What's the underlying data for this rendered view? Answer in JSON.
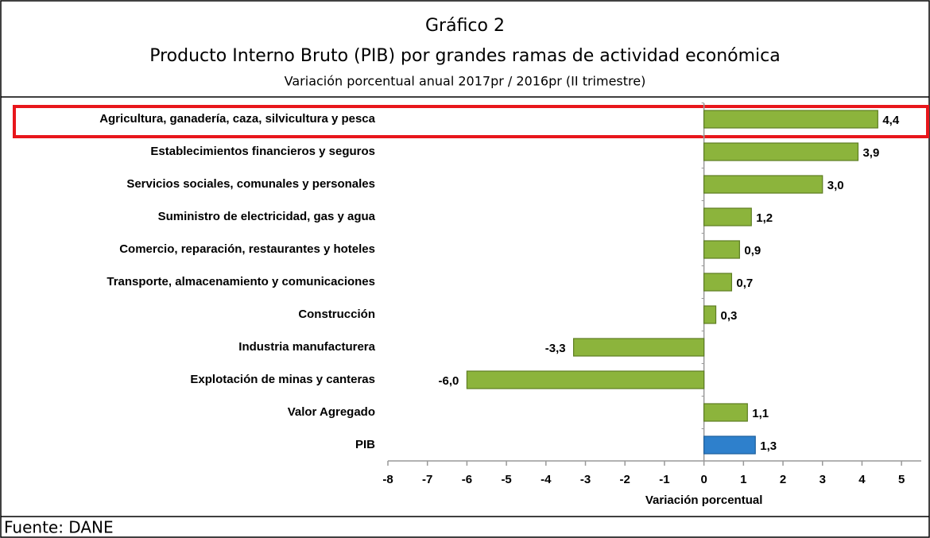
{
  "header": {
    "title": "Gráfico 2",
    "subtitle": "Producto Interno Bruto (PIB) por grandes ramas de actividad económica",
    "note": "Variación porcentual anual 2017pr / 2016pr (II trimestre)"
  },
  "chart_data": {
    "type": "bar",
    "orientation": "horizontal",
    "categories": [
      "Agricultura, ganadería, caza, silvicultura y pesca",
      "Establecimientos financieros y seguros",
      "Servicios sociales, comunales y personales",
      "Suministro de electricidad, gas y agua",
      "Comercio, reparación, restaurantes y hoteles",
      "Transporte, almacenamiento y comunicaciones",
      "Construcción",
      "Industria manufacturera",
      "Explotación de minas y canteras",
      "Valor Agregado",
      "PIB"
    ],
    "values": [
      4.4,
      3.9,
      3.0,
      1.2,
      0.9,
      0.7,
      0.3,
      -3.3,
      -6.0,
      1.1,
      1.3
    ],
    "value_labels": [
      "4,4",
      "3,9",
      "3,0",
      "1,2",
      "0,9",
      "0,7",
      "0,3",
      "-3,3",
      "-6,0",
      "1,1",
      "1,3"
    ],
    "colors": [
      "#8cb43c",
      "#8cb43c",
      "#8cb43c",
      "#8cb43c",
      "#8cb43c",
      "#8cb43c",
      "#8cb43c",
      "#8cb43c",
      "#8cb43c",
      "#8cb43c",
      "#2e80cc"
    ],
    "xlim": [
      -8,
      5.5
    ],
    "xticks": [
      -8,
      -7,
      -6,
      -5,
      -4,
      -3,
      -2,
      -1,
      0,
      1,
      2,
      3,
      4,
      5
    ],
    "xlabel": "Variación porcentual"
  },
  "footer": {
    "source": "Fuente: DANE"
  }
}
